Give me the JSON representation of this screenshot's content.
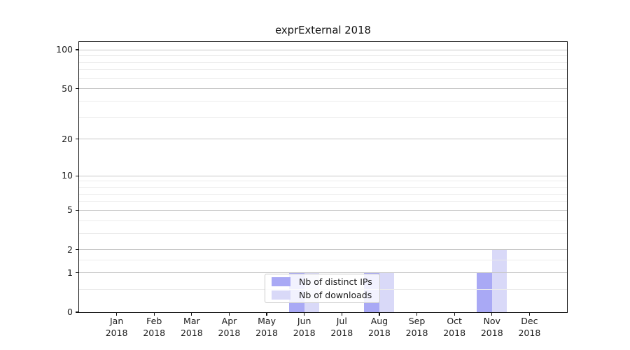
{
  "chart_data": {
    "type": "bar",
    "title": "exprExternal 2018",
    "categories": [
      "Jan",
      "Feb",
      "Mar",
      "Apr",
      "May",
      "Jun",
      "Jul",
      "Aug",
      "Sep",
      "Oct",
      "Nov",
      "Dec"
    ],
    "x_year_suffix": "2018",
    "series": [
      {
        "name": "Nb of distinct IPs",
        "color": "#a9a9f5",
        "values": [
          0,
          0,
          0,
          0,
          0,
          1,
          0,
          1,
          0,
          0,
          1,
          0
        ]
      },
      {
        "name": "Nb of downloads",
        "color": "#d9d9f8",
        "values": [
          0,
          0,
          0,
          0,
          0,
          1,
          0,
          1,
          0,
          0,
          2,
          0
        ]
      }
    ],
    "y_axis": {
      "scale": "log10(1+y)",
      "major_ticks": [
        0,
        1,
        2,
        5,
        10,
        20,
        50,
        100
      ],
      "minor_ticks": [
        0.5,
        1.5,
        3,
        4,
        6,
        7,
        8,
        9,
        30,
        40,
        60,
        70,
        80,
        90
      ],
      "ylim": [
        0,
        114.8
      ]
    },
    "grid": true,
    "legend_position": "lower center",
    "colors": {
      "major_grid": "#c6c6c6",
      "minor_grid": "#ebebeb",
      "axis": "#111111",
      "text": "#1a1a1a"
    }
  }
}
